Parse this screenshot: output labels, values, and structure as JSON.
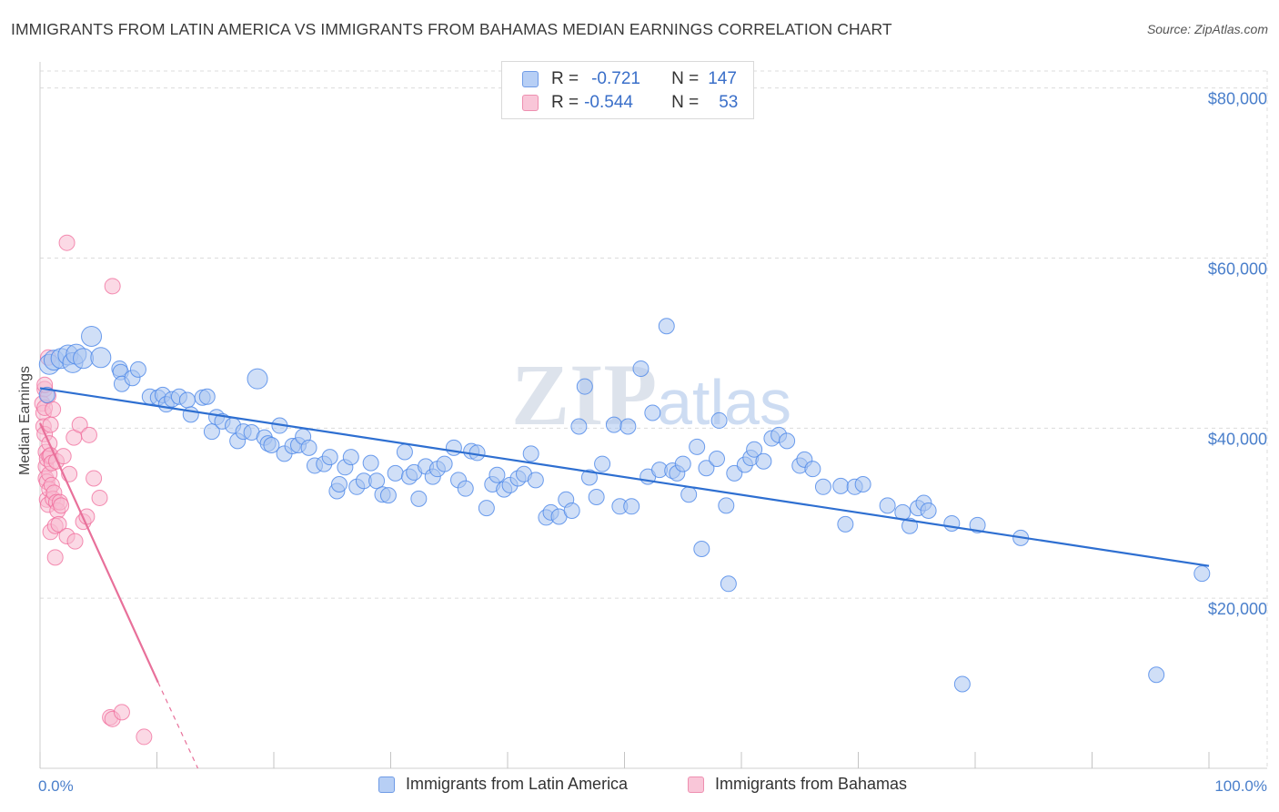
{
  "header": {
    "title": "IMMIGRANTS FROM LATIN AMERICA VS IMMIGRANTS FROM BAHAMAS MEDIAN EARNINGS CORRELATION CHART",
    "source": "Source: ZipAtlas.com"
  },
  "watermark": "ZIPatlas",
  "colors": {
    "blue": "#4a86e8",
    "blue_fill": "#a9c4f0",
    "blue_line": "#2e6fd1",
    "pink": "#f06a9a",
    "pink_fill": "#f7b9cf",
    "pink_line": "#e8709a",
    "grid": "#dcdcdc",
    "tick_text": "#4a7fcb"
  },
  "legend_top": {
    "rows": [
      {
        "r_label": "R =",
        "r_value": "-0.721",
        "n_label": "N =",
        "n_value": "147"
      },
      {
        "r_label": "R =",
        "r_value": "-0.544",
        "n_label": "N =",
        "n_value": "53"
      }
    ]
  },
  "legend_bottom": {
    "items": [
      "Immigrants from Latin America",
      "Immigrants from Bahamas"
    ]
  },
  "chart_data": {
    "type": "scatter",
    "title": "IMMIGRANTS FROM LATIN AMERICA VS IMMIGRANTS FROM BAHAMAS MEDIAN EARNINGS CORRELATION CHART",
    "xlabel": "",
    "ylabel": "Median Earnings",
    "xlim": [
      0,
      100
    ],
    "ylim": [
      0,
      82000
    ],
    "x_tick_labels": [
      "0.0%",
      "100.0%"
    ],
    "y_ticks": [
      20000,
      40000,
      60000,
      80000
    ],
    "y_tick_labels": [
      "$20,000",
      "$40,000",
      "$60,000",
      "$80,000"
    ],
    "grid": true,
    "legend_position": "top-center",
    "series": [
      {
        "name": "Immigrants from Latin America",
        "r": -0.721,
        "n": 147,
        "trend": {
          "x": [
            0,
            100
          ],
          "y": [
            44700,
            23800
          ]
        },
        "points": [
          [
            0.6,
            43900
          ],
          [
            0.8,
            47500
          ],
          [
            1.2,
            48000
          ],
          [
            1.8,
            48200
          ],
          [
            2.4,
            48600
          ],
          [
            2.8,
            47700
          ],
          [
            3.1,
            48700
          ],
          [
            3.7,
            48200
          ],
          [
            4.4,
            50800
          ],
          [
            5.2,
            48300
          ],
          [
            6.8,
            47000
          ],
          [
            6.9,
            46600
          ],
          [
            7.0,
            45200
          ],
          [
            7.9,
            45900
          ],
          [
            8.4,
            46900
          ],
          [
            9.4,
            43700
          ],
          [
            10.1,
            43600
          ],
          [
            10.5,
            43900
          ],
          [
            10.8,
            42800
          ],
          [
            11.3,
            43400
          ],
          [
            11.9,
            43700
          ],
          [
            12.6,
            43300
          ],
          [
            12.9,
            41600
          ],
          [
            13.9,
            43600
          ],
          [
            14.3,
            43700
          ],
          [
            14.7,
            39600
          ],
          [
            15.1,
            41300
          ],
          [
            15.6,
            40800
          ],
          [
            16.5,
            40300
          ],
          [
            16.9,
            38500
          ],
          [
            17.4,
            39600
          ],
          [
            18.1,
            39500
          ],
          [
            18.6,
            45800
          ],
          [
            19.2,
            38900
          ],
          [
            19.5,
            38200
          ],
          [
            19.8,
            38000
          ],
          [
            20.5,
            40300
          ],
          [
            20.9,
            37000
          ],
          [
            21.6,
            37900
          ],
          [
            22.1,
            38000
          ],
          [
            22.5,
            39000
          ],
          [
            23.0,
            37700
          ],
          [
            23.5,
            35600
          ],
          [
            24.3,
            35800
          ],
          [
            24.8,
            36600
          ],
          [
            25.4,
            32600
          ],
          [
            25.6,
            33400
          ],
          [
            26.1,
            35400
          ],
          [
            26.6,
            36600
          ],
          [
            27.1,
            33100
          ],
          [
            27.7,
            33800
          ],
          [
            28.3,
            35900
          ],
          [
            28.8,
            33800
          ],
          [
            29.3,
            32200
          ],
          [
            29.8,
            32100
          ],
          [
            30.4,
            34700
          ],
          [
            31.2,
            37200
          ],
          [
            31.6,
            34300
          ],
          [
            32.0,
            34800
          ],
          [
            32.4,
            31700
          ],
          [
            33.0,
            35500
          ],
          [
            33.6,
            34300
          ],
          [
            34.0,
            35200
          ],
          [
            34.6,
            35800
          ],
          [
            35.4,
            37700
          ],
          [
            35.8,
            33900
          ],
          [
            36.4,
            32900
          ],
          [
            36.9,
            37300
          ],
          [
            37.4,
            37100
          ],
          [
            38.2,
            30600
          ],
          [
            38.7,
            33400
          ],
          [
            39.1,
            34500
          ],
          [
            39.7,
            32800
          ],
          [
            40.2,
            33300
          ],
          [
            40.9,
            34100
          ],
          [
            41.4,
            34600
          ],
          [
            42.0,
            37000
          ],
          [
            42.4,
            33900
          ],
          [
            43.3,
            29500
          ],
          [
            43.7,
            30100
          ],
          [
            44.4,
            29600
          ],
          [
            45.0,
            31600
          ],
          [
            45.5,
            30300
          ],
          [
            46.1,
            40200
          ],
          [
            46.6,
            44900
          ],
          [
            47.0,
            34200
          ],
          [
            47.6,
            31900
          ],
          [
            48.1,
            35800
          ],
          [
            49.1,
            40400
          ],
          [
            49.6,
            30800
          ],
          [
            50.3,
            40200
          ],
          [
            50.6,
            30800
          ],
          [
            51.4,
            47000
          ],
          [
            52.0,
            34300
          ],
          [
            52.4,
            41800
          ],
          [
            53.0,
            35100
          ],
          [
            53.6,
            52000
          ],
          [
            54.1,
            35000
          ],
          [
            54.5,
            34700
          ],
          [
            55.0,
            35800
          ],
          [
            55.5,
            32200
          ],
          [
            56.2,
            37800
          ],
          [
            56.6,
            25800
          ],
          [
            57.0,
            35300
          ],
          [
            57.9,
            36400
          ],
          [
            58.1,
            40900
          ],
          [
            58.7,
            30900
          ],
          [
            58.9,
            21700
          ],
          [
            59.4,
            34700
          ],
          [
            60.3,
            35700
          ],
          [
            60.8,
            36500
          ],
          [
            61.1,
            37500
          ],
          [
            61.9,
            36100
          ],
          [
            62.6,
            38800
          ],
          [
            63.2,
            39200
          ],
          [
            63.9,
            38500
          ],
          [
            65.0,
            35600
          ],
          [
            65.4,
            36300
          ],
          [
            66.1,
            35200
          ],
          [
            67.0,
            33100
          ],
          [
            68.5,
            33200
          ],
          [
            68.9,
            28700
          ],
          [
            69.7,
            33100
          ],
          [
            70.4,
            33400
          ],
          [
            72.5,
            30900
          ],
          [
            73.8,
            30100
          ],
          [
            74.4,
            28500
          ],
          [
            75.1,
            30600
          ],
          [
            75.6,
            31200
          ],
          [
            76.0,
            30300
          ],
          [
            78.0,
            28800
          ],
          [
            80.2,
            28600
          ],
          [
            78.9,
            9900
          ],
          [
            83.9,
            27100
          ],
          [
            95.5,
            11000
          ],
          [
            99.4,
            22900
          ]
        ]
      },
      {
        "name": "Immigrants from Bahamas",
        "r": -0.544,
        "n": 53,
        "trend": {
          "x": [
            0,
            10.1
          ],
          "y": [
            40600,
            10100
          ]
        },
        "trend_dashed": {
          "x": [
            10.1,
            13.5
          ],
          "y": [
            10100,
            0
          ]
        },
        "points": [
          [
            0.2,
            42900
          ],
          [
            0.3,
            41800
          ],
          [
            0.3,
            40200
          ],
          [
            0.4,
            44600
          ],
          [
            0.4,
            42400
          ],
          [
            0.4,
            39300
          ],
          [
            0.5,
            37200
          ],
          [
            0.5,
            35500
          ],
          [
            0.5,
            34100
          ],
          [
            0.6,
            33700
          ],
          [
            0.6,
            31600
          ],
          [
            0.6,
            36400
          ],
          [
            0.7,
            48300
          ],
          [
            0.7,
            43800
          ],
          [
            0.7,
            31000
          ],
          [
            0.8,
            36700
          ],
          [
            0.8,
            38200
          ],
          [
            0.8,
            34600
          ],
          [
            0.8,
            32800
          ],
          [
            0.9,
            27800
          ],
          [
            0.9,
            36800
          ],
          [
            0.9,
            40400
          ],
          [
            1.0,
            35900
          ],
          [
            1.0,
            33300
          ],
          [
            1.1,
            31700
          ],
          [
            1.1,
            42200
          ],
          [
            1.2,
            32400
          ],
          [
            1.3,
            24800
          ],
          [
            1.3,
            28500
          ],
          [
            1.4,
            36100
          ],
          [
            1.4,
            31300
          ],
          [
            1.5,
            30300
          ],
          [
            1.6,
            28700
          ],
          [
            1.7,
            31300
          ],
          [
            1.8,
            30900
          ],
          [
            2.0,
            36700
          ],
          [
            2.3,
            61800
          ],
          [
            2.3,
            27300
          ],
          [
            2.5,
            34600
          ],
          [
            2.9,
            38900
          ],
          [
            3.0,
            26700
          ],
          [
            3.4,
            40400
          ],
          [
            3.7,
            29000
          ],
          [
            4.0,
            29600
          ],
          [
            4.2,
            39200
          ],
          [
            4.6,
            34100
          ],
          [
            5.1,
            31800
          ],
          [
            6.0,
            6000
          ],
          [
            6.2,
            5800
          ],
          [
            6.2,
            56700
          ],
          [
            7.0,
            6600
          ],
          [
            8.9,
            3700
          ],
          [
            0.4,
            45100
          ]
        ]
      }
    ]
  }
}
